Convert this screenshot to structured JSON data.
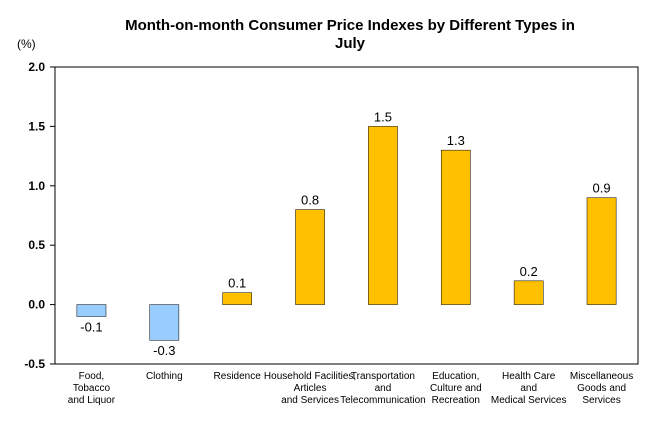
{
  "chart_data": {
    "type": "bar",
    "title_lines": [
      "Month-on-month Consumer Price Indexes by Different Types in",
      "July"
    ],
    "ylabel": "(%)",
    "xlabel": "",
    "ylim": [
      -0.5,
      2.0
    ],
    "yticks": [
      "2.0",
      "1.5",
      "1.0",
      "0.5",
      "0.0",
      "-0.5"
    ],
    "grid": false,
    "legend": "none",
    "categories": [
      [
        "Food,",
        "Tobacco",
        "and Liquor"
      ],
      [
        "Clothing"
      ],
      [
        "Residence"
      ],
      [
        "Household Facilities,",
        "Articles",
        "and Services"
      ],
      [
        "Transportation",
        "and",
        "Telecommunication"
      ],
      [
        "Education,",
        "Culture and",
        "Recreation"
      ],
      [
        "Health Care",
        "and",
        "Medical Services"
      ],
      [
        "Miscellaneous",
        "Goods and",
        "Services"
      ]
    ],
    "values": [
      -0.1,
      -0.3,
      0.1,
      0.8,
      1.5,
      1.3,
      0.2,
      0.9
    ],
    "data_labels": [
      "-0.1",
      "-0.3",
      "0.1",
      "0.8",
      "1.5",
      "1.3",
      "0.2",
      "0.9"
    ],
    "colors": {
      "positive": "#FFC000",
      "negative": "#99CCFF",
      "bar_edge": "#000000",
      "frame": "#000000"
    }
  }
}
